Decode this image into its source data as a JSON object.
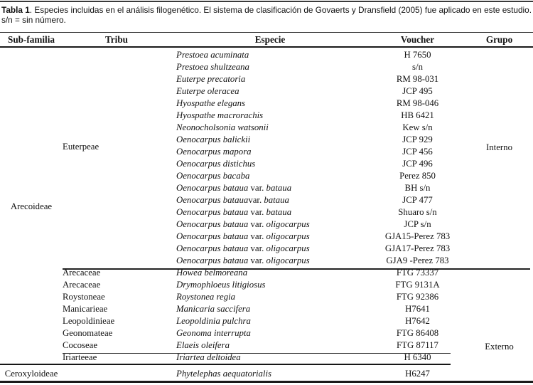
{
  "caption": {
    "label": "Tabla 1",
    "text": ". Especies incluidas en el análisis filogenético. El sistema de clasificación de Govaerts y Dransfield (2005) fue aplicado en este estudio. s/n = sin número."
  },
  "table": {
    "headers": [
      "Sub-familia",
      "Tribu",
      "Especie",
      "Voucher",
      "Grupo"
    ],
    "group_labels": {
      "subfamilia_main": "Arecoideae",
      "tribu_main": "Euterpeae",
      "grupo_interno": "Interno",
      "grupo_externo": "Externo"
    },
    "rows": [
      {
        "subfamilia": "",
        "tribu": "",
        "especie_italic": "Prestoea acuminata",
        "especie_roman": "",
        "especie_italic2": "",
        "voucher": "H 7650"
      },
      {
        "subfamilia": "",
        "tribu": "",
        "especie_italic": "Prestoea shultzeana",
        "especie_roman": "",
        "especie_italic2": "",
        "voucher": "s/n"
      },
      {
        "subfamilia": "",
        "tribu": "",
        "especie_italic": "Euterpe precatoria",
        "especie_roman": "",
        "especie_italic2": "",
        "voucher": "RM 98-031"
      },
      {
        "subfamilia": "",
        "tribu": "",
        "especie_italic": "Euterpe oleracea",
        "especie_roman": "",
        "especie_italic2": "",
        "voucher": "JCP 495"
      },
      {
        "subfamilia": "",
        "tribu": "",
        "especie_italic": "Hyospathe elegans",
        "especie_roman": "",
        "especie_italic2": "",
        "voucher": "RM 98-046"
      },
      {
        "subfamilia": "",
        "tribu": "",
        "especie_italic": "Hyospathe macrorachis",
        "especie_roman": "",
        "especie_italic2": "",
        "voucher": "HB 6421"
      },
      {
        "subfamilia": "",
        "tribu": "",
        "especie_italic": "Neonocholsonia watsonii",
        "especie_roman": "",
        "especie_italic2": "",
        "voucher": "Kew s/n"
      },
      {
        "subfamilia": "",
        "tribu": "",
        "especie_italic": "Oenocarpus balickii",
        "especie_roman": "",
        "especie_italic2": "",
        "voucher": "JCP 929"
      },
      {
        "subfamilia": "",
        "tribu": "",
        "especie_italic": "Oenocarpus mapora",
        "especie_roman": "",
        "especie_italic2": "",
        "voucher": "JCP 456"
      },
      {
        "subfamilia": "",
        "tribu": "",
        "especie_italic": "Oenocarpus distichus",
        "especie_roman": "",
        "especie_italic2": "",
        "voucher": "JCP 496"
      },
      {
        "subfamilia": "",
        "tribu": "",
        "especie_italic": "Oenocarpus bacaba",
        "especie_roman": "",
        "especie_italic2": "",
        "voucher": "Perez 850"
      },
      {
        "subfamilia": "",
        "tribu": "",
        "especie_italic": "Oenocarpus bataua",
        "especie_roman": " var. ",
        "especie_italic2": "bataua",
        "voucher": "BH s/n"
      },
      {
        "subfamilia": "",
        "tribu": "",
        "especie_italic": "Oenocarpus bataua",
        "especie_roman": "var. ",
        "especie_italic2": "bataua",
        "voucher": "JCP 477"
      },
      {
        "subfamilia": "",
        "tribu": "",
        "especie_italic": "Oenocarpus bataua",
        "especie_roman": " var. ",
        "especie_italic2": "bataua",
        "voucher": "Shuaro s/n"
      },
      {
        "subfamilia": "",
        "tribu": "",
        "especie_italic": "Oenocarpus bataua",
        "especie_roman": " var. ",
        "especie_italic2": "oligocarpus",
        "voucher": "JCP s/n"
      },
      {
        "subfamilia": "",
        "tribu": "",
        "especie_italic": "Oenocarpus bataua",
        "especie_roman": " var. ",
        "especie_italic2": "oligocarpus",
        "voucher": "GJA15-Perez 783"
      },
      {
        "subfamilia": "",
        "tribu": "",
        "especie_italic": "Oenocarpus bataua",
        "especie_roman": " var. ",
        "especie_italic2": "oligocarpus",
        "voucher": "GJA17-Perez 783"
      },
      {
        "subfamilia": "",
        "tribu": "",
        "especie_italic": "Oenocarpus bataua",
        "especie_roman": " var. ",
        "especie_italic2": "oligocarpus",
        "voucher": "GJA9 -Perez 783"
      },
      {
        "subfamilia": "",
        "tribu": "Arecaceae",
        "especie_italic": "Howea belmoreana",
        "especie_roman": "",
        "especie_italic2": "",
        "voucher": "FTG 73337"
      },
      {
        "subfamilia": "",
        "tribu": "Arecaceae",
        "especie_italic": "Drymophloeus litigiosus",
        "especie_roman": "",
        "especie_italic2": "",
        "voucher": "FTG 9131A"
      },
      {
        "subfamilia": "",
        "tribu": "Roystoneae",
        "especie_italic": "Roystonea regia",
        "especie_roman": "",
        "especie_italic2": "",
        "voucher": "FTG 92386"
      },
      {
        "subfamilia": "",
        "tribu": "Manicarieae",
        "especie_italic": "Manicaria saccifera",
        "especie_roman": "",
        "especie_italic2": "",
        "voucher": "H7641"
      },
      {
        "subfamilia": "",
        "tribu": "Leopoldinieae",
        "especie_italic": "Leopoldinia pulchra",
        "especie_roman": "",
        "especie_italic2": "",
        "voucher": "H7642"
      },
      {
        "subfamilia": "",
        "tribu": "Geonomateae",
        "especie_italic": "Geonoma interrupta",
        "especie_roman": "",
        "especie_italic2": "",
        "voucher": "FTG 86408"
      },
      {
        "subfamilia": "",
        "tribu": "Cocoseae",
        "especie_italic": "Elaeis oleifera",
        "especie_roman": "",
        "especie_italic2": "",
        "voucher": "FTG 87117"
      },
      {
        "subfamilia": "",
        "tribu": "Iriarteeae",
        "especie_italic": "Iriartea deltoidea",
        "especie_roman": "",
        "especie_italic2": "",
        "voucher": "H 6340"
      },
      {
        "subfamilia": "Ceroxyloideae",
        "tribu": "",
        "especie_italic": "Phytelephas aequatorialis",
        "especie_roman": "",
        "especie_italic2": "",
        "voucher": "H6247",
        "last": true
      }
    ]
  }
}
